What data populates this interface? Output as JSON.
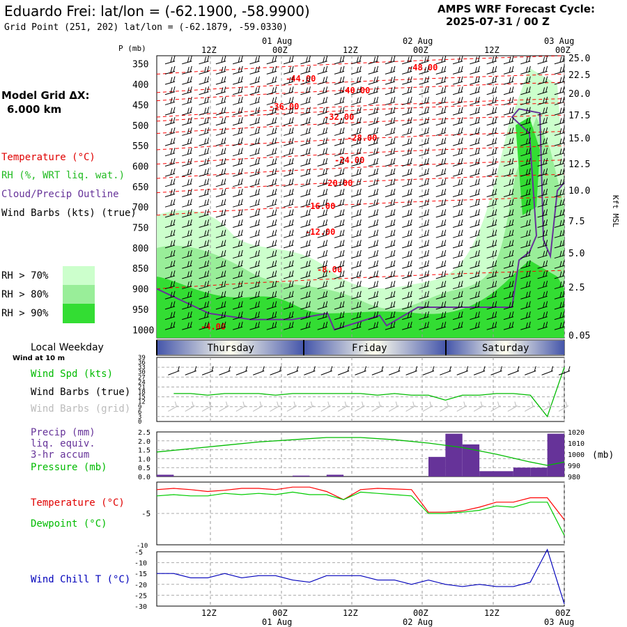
{
  "header": {
    "station": "Eduardo Frei:",
    "latlon": "lat/lon = (-62.1900, -58.9900)",
    "gridpoint": "Grid Point (251, 202) lat/lon = (-62.1879, -59.0330)",
    "cycle_title": "AMPS WRF Forecast Cycle:",
    "cycle_value": "2025-07-31 / 00  Z"
  },
  "left_panel": {
    "model_grid_label": "Model Grid ΔX:",
    "model_grid_value": "6.000 km",
    "temperature": "Temperature (°C)",
    "rh": "RH (%, WRT liq. wat.)",
    "cloud": "Cloud/Precip Outline",
    "wind_barbs": "Wind Barbs (kts) (true)",
    "rh70": "RH > 70%",
    "rh80": "RH > 80%",
    "rh90": "RH > 90%",
    "local_weekday": "Local Weekday",
    "wind_at": "Wind at 10 m",
    "wind_spd": "Wind Spd (kts)",
    "wind_barbs_true": "Wind Barbs (true)",
    "wind_barbs_grid": "Wind Barbs (grid)",
    "precip1": "Precip (mm)",
    "precip2": "liq. equiv.",
    "precip3": "3-hr accum",
    "pressure": "Pressure (mb)",
    "temp2": "Temperature (°C)",
    "dew": "Dewpoint (°C)",
    "windchill": "Wind Chill T (°C)"
  },
  "colors": {
    "temperature": "#ff0000",
    "rh70": "#ccffcc",
    "rh80": "#99ee99",
    "rh90": "#33dd33",
    "cloud": "#663399",
    "dewpoint": "#00cc00",
    "windchill": "#0000bb",
    "precip": "#663399"
  },
  "chart_data": [
    {
      "type": "line",
      "name": "cross-section",
      "time_ticks": {
        "top_hours": [
          "12Z",
          "00Z",
          "12Z",
          "00Z",
          "12Z",
          "00Z"
        ],
        "top_dates": [
          "01 Aug",
          "02 Aug",
          "03 Aug"
        ],
        "bottom_hours": [
          "12Z",
          "00Z",
          "12Z",
          "00Z",
          "12Z",
          "00Z"
        ],
        "bottom_dates": [
          "01 Aug",
          "02 Aug",
          "03 Aug"
        ]
      },
      "ylabel_left": "P (mb)",
      "pressure_ticks": [
        "350",
        "400",
        "450",
        "500",
        "550",
        "600",
        "650",
        "700",
        "750",
        "800",
        "850",
        "900",
        "950",
        "1000"
      ],
      "height_ticks": [
        "25.0",
        "22.5",
        "20.0",
        "17.5",
        "15.0",
        "12.5",
        "10.0",
        "7.5",
        "5.0",
        "2.5",
        "0.05"
      ],
      "ylabel_right": "Kft MSL",
      "temperature_labels": [
        "-48.00",
        "-44.00",
        "-40.00",
        "-36.00",
        "-32.00",
        "-28.00",
        "-24.00",
        "-20.00",
        "-16.00",
        "-12.00",
        "-8.00",
        "-4.00"
      ],
      "weekdays": [
        "Thursday",
        "Friday",
        "Saturday"
      ]
    },
    {
      "type": "line",
      "name": "wind-speed",
      "ylim": [
        0,
        39
      ],
      "yticks": [
        "39",
        "36",
        "33",
        "30",
        "27",
        "24",
        "21",
        "18",
        "15",
        "12",
        "9",
        "6",
        "3",
        "0"
      ],
      "x_hours": [
        3,
        6,
        9,
        12,
        15,
        18,
        21,
        24,
        27,
        30,
        33,
        36,
        39,
        42,
        45,
        48,
        51,
        54,
        57,
        60,
        63,
        66,
        69,
        72
      ],
      "values": [
        17,
        17,
        16,
        17,
        17,
        17,
        16,
        17,
        17,
        17,
        17,
        17,
        16,
        17,
        16,
        16,
        13,
        16,
        16,
        17,
        17,
        16,
        3,
        33
      ]
    },
    {
      "type": "bar",
      "name": "precip-pressure",
      "precip_ylim": [
        0,
        2.5
      ],
      "precip_yticks": [
        "2.5",
        "2.0",
        "1.5",
        "1.0",
        "0.5",
        "0.0"
      ],
      "pressure_ylim": [
        980,
        1020
      ],
      "pressure_yticks": [
        "1020",
        "1010",
        "1000",
        "990",
        "980"
      ],
      "pressure_unit": "(mb)",
      "precip_bins_start_hour": [
        0,
        3,
        6,
        9,
        12,
        15,
        18,
        21,
        24,
        27,
        30,
        33,
        36,
        39,
        42,
        45,
        48,
        51,
        54,
        57,
        60,
        63,
        66,
        69
      ],
      "precip_values": [
        0.1,
        0,
        0,
        0,
        0,
        0,
        0,
        0,
        0.05,
        0,
        0.1,
        0,
        0,
        0,
        0,
        0,
        1.1,
        2.4,
        1.8,
        0.3,
        0.3,
        0.5,
        0.5,
        2.4
      ],
      "pressure_hours": [
        0,
        6,
        12,
        18,
        24,
        30,
        36,
        42,
        48,
        54,
        60,
        66,
        69,
        72
      ],
      "pressure_values": [
        1002,
        1005,
        1008,
        1011,
        1013,
        1015,
        1015,
        1013,
        1010,
        1006,
        1000,
        993,
        990,
        993
      ]
    },
    {
      "type": "line",
      "name": "temperature-dewpoint",
      "ylim": [
        -10,
        0
      ],
      "yticks": [
        "-5",
        "-10"
      ],
      "hours": [
        0,
        3,
        6,
        9,
        12,
        15,
        18,
        21,
        24,
        27,
        30,
        33,
        36,
        39,
        42,
        45,
        48,
        51,
        54,
        57,
        60,
        63,
        66,
        69,
        72
      ],
      "temperature": [
        -1.2,
        -1,
        -1.2,
        -1.5,
        -1.3,
        -1,
        -1,
        -1.2,
        -0.8,
        -0.8,
        -1.5,
        -2.8,
        -1.2,
        -1,
        -1.1,
        -1.2,
        -4.8,
        -4.8,
        -4.6,
        -4,
        -3.2,
        -3.2,
        -2.5,
        -2.5,
        -6
      ],
      "dewpoint": [
        -2.2,
        -2,
        -2.2,
        -2.2,
        -1.8,
        -2,
        -1.8,
        -2,
        -1.6,
        -2,
        -2,
        -2.8,
        -1.6,
        -1.8,
        -2,
        -2.2,
        -5,
        -5,
        -4.8,
        -4.5,
        -3.8,
        -4,
        -3.2,
        -3.2,
        -8.5
      ]
    },
    {
      "type": "line",
      "name": "wind-chill",
      "ylim": [
        -30,
        -5
      ],
      "yticks": [
        "-5",
        "-10",
        "-15",
        "-20",
        "-25",
        "-30"
      ],
      "hours": [
        0,
        3,
        6,
        9,
        12,
        15,
        18,
        21,
        24,
        27,
        30,
        33,
        36,
        39,
        42,
        45,
        48,
        51,
        54,
        57,
        60,
        63,
        66,
        69,
        72
      ],
      "values": [
        -15,
        -15,
        -17,
        -17,
        -15,
        -17,
        -16,
        -16,
        -18,
        -19,
        -16,
        -16,
        -16,
        -18,
        -18,
        -20,
        -18,
        -20,
        -21,
        -20,
        -21,
        -21,
        -19,
        -4,
        -29
      ]
    }
  ]
}
